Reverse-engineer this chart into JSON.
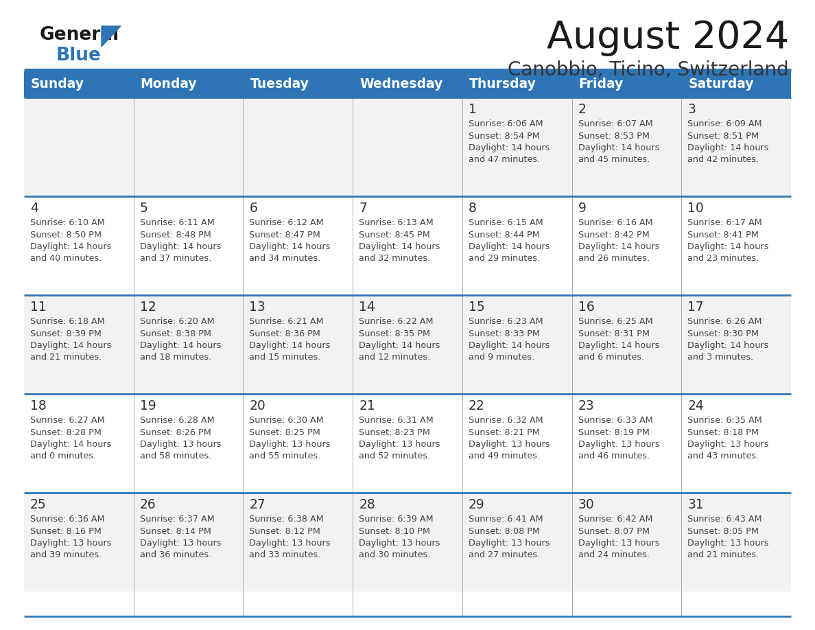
{
  "title": "August 2024",
  "subtitle": "Canobbio, Ticino, Switzerland",
  "days_of_week": [
    "Sunday",
    "Monday",
    "Tuesday",
    "Wednesday",
    "Thursday",
    "Friday",
    "Saturday"
  ],
  "header_bg": "#2E75B6",
  "header_text_color": "#FFFFFF",
  "cell_bg_odd": "#F2F2F2",
  "cell_bg_even": "#FFFFFF",
  "separator_color": "#2E75B6",
  "grid_color": "#AAAAAA",
  "day_number_color": "#333333",
  "text_color": "#444444",
  "title_color": "#1a1a1a",
  "subtitle_color": "#333333",
  "logo_general_color": "#1a1a1a",
  "logo_blue_color": "#2E75B6",
  "calendar_data": [
    [
      null,
      null,
      null,
      null,
      {
        "day": 1,
        "sunrise": "6:06 AM",
        "sunset": "8:54 PM",
        "daylight_hours": 14,
        "daylight_minutes": 47
      },
      {
        "day": 2,
        "sunrise": "6:07 AM",
        "sunset": "8:53 PM",
        "daylight_hours": 14,
        "daylight_minutes": 45
      },
      {
        "day": 3,
        "sunrise": "6:09 AM",
        "sunset": "8:51 PM",
        "daylight_hours": 14,
        "daylight_minutes": 42
      }
    ],
    [
      {
        "day": 4,
        "sunrise": "6:10 AM",
        "sunset": "8:50 PM",
        "daylight_hours": 14,
        "daylight_minutes": 40
      },
      {
        "day": 5,
        "sunrise": "6:11 AM",
        "sunset": "8:48 PM",
        "daylight_hours": 14,
        "daylight_minutes": 37
      },
      {
        "day": 6,
        "sunrise": "6:12 AM",
        "sunset": "8:47 PM",
        "daylight_hours": 14,
        "daylight_minutes": 34
      },
      {
        "day": 7,
        "sunrise": "6:13 AM",
        "sunset": "8:45 PM",
        "daylight_hours": 14,
        "daylight_minutes": 32
      },
      {
        "day": 8,
        "sunrise": "6:15 AM",
        "sunset": "8:44 PM",
        "daylight_hours": 14,
        "daylight_minutes": 29
      },
      {
        "day": 9,
        "sunrise": "6:16 AM",
        "sunset": "8:42 PM",
        "daylight_hours": 14,
        "daylight_minutes": 26
      },
      {
        "day": 10,
        "sunrise": "6:17 AM",
        "sunset": "8:41 PM",
        "daylight_hours": 14,
        "daylight_minutes": 23
      }
    ],
    [
      {
        "day": 11,
        "sunrise": "6:18 AM",
        "sunset": "8:39 PM",
        "daylight_hours": 14,
        "daylight_minutes": 21
      },
      {
        "day": 12,
        "sunrise": "6:20 AM",
        "sunset": "8:38 PM",
        "daylight_hours": 14,
        "daylight_minutes": 18
      },
      {
        "day": 13,
        "sunrise": "6:21 AM",
        "sunset": "8:36 PM",
        "daylight_hours": 14,
        "daylight_minutes": 15
      },
      {
        "day": 14,
        "sunrise": "6:22 AM",
        "sunset": "8:35 PM",
        "daylight_hours": 14,
        "daylight_minutes": 12
      },
      {
        "day": 15,
        "sunrise": "6:23 AM",
        "sunset": "8:33 PM",
        "daylight_hours": 14,
        "daylight_minutes": 9
      },
      {
        "day": 16,
        "sunrise": "6:25 AM",
        "sunset": "8:31 PM",
        "daylight_hours": 14,
        "daylight_minutes": 6
      },
      {
        "day": 17,
        "sunrise": "6:26 AM",
        "sunset": "8:30 PM",
        "daylight_hours": 14,
        "daylight_minutes": 3
      }
    ],
    [
      {
        "day": 18,
        "sunrise": "6:27 AM",
        "sunset": "8:28 PM",
        "daylight_hours": 14,
        "daylight_minutes": 0
      },
      {
        "day": 19,
        "sunrise": "6:28 AM",
        "sunset": "8:26 PM",
        "daylight_hours": 13,
        "daylight_minutes": 58
      },
      {
        "day": 20,
        "sunrise": "6:30 AM",
        "sunset": "8:25 PM",
        "daylight_hours": 13,
        "daylight_minutes": 55
      },
      {
        "day": 21,
        "sunrise": "6:31 AM",
        "sunset": "8:23 PM",
        "daylight_hours": 13,
        "daylight_minutes": 52
      },
      {
        "day": 22,
        "sunrise": "6:32 AM",
        "sunset": "8:21 PM",
        "daylight_hours": 13,
        "daylight_minutes": 49
      },
      {
        "day": 23,
        "sunrise": "6:33 AM",
        "sunset": "8:19 PM",
        "daylight_hours": 13,
        "daylight_minutes": 46
      },
      {
        "day": 24,
        "sunrise": "6:35 AM",
        "sunset": "8:18 PM",
        "daylight_hours": 13,
        "daylight_minutes": 43
      }
    ],
    [
      {
        "day": 25,
        "sunrise": "6:36 AM",
        "sunset": "8:16 PM",
        "daylight_hours": 13,
        "daylight_minutes": 39
      },
      {
        "day": 26,
        "sunrise": "6:37 AM",
        "sunset": "8:14 PM",
        "daylight_hours": 13,
        "daylight_minutes": 36
      },
      {
        "day": 27,
        "sunrise": "6:38 AM",
        "sunset": "8:12 PM",
        "daylight_hours": 13,
        "daylight_minutes": 33
      },
      {
        "day": 28,
        "sunrise": "6:39 AM",
        "sunset": "8:10 PM",
        "daylight_hours": 13,
        "daylight_minutes": 30
      },
      {
        "day": 29,
        "sunrise": "6:41 AM",
        "sunset": "8:08 PM",
        "daylight_hours": 13,
        "daylight_minutes": 27
      },
      {
        "day": 30,
        "sunrise": "6:42 AM",
        "sunset": "8:07 PM",
        "daylight_hours": 13,
        "daylight_minutes": 24
      },
      {
        "day": 31,
        "sunrise": "6:43 AM",
        "sunset": "8:05 PM",
        "daylight_hours": 13,
        "daylight_minutes": 21
      }
    ]
  ]
}
